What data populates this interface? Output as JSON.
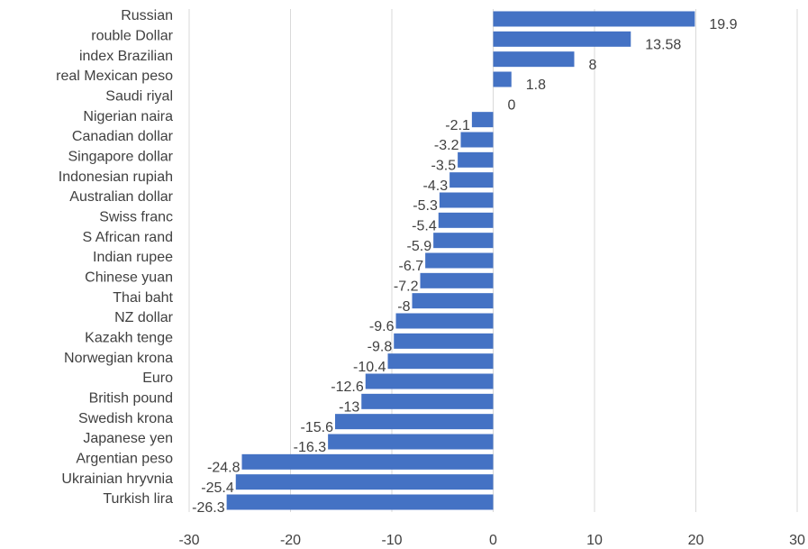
{
  "chart_data": {
    "type": "barh",
    "categories": [
      "Russian",
      "rouble Dollar",
      "index Brazilian",
      "real Mexican peso",
      "Saudi riyal",
      "Nigerian naira",
      "Canadian dollar",
      "Singapore dollar",
      "Indonesian rupiah",
      "Australian dollar",
      "Swiss franc",
      "S African rand",
      "Indian rupee",
      "Chinese yuan",
      "Thai baht",
      "NZ dollar",
      "Kazakh tenge",
      "Norwegian krona",
      "Euro",
      "British  pound",
      "Swedish krona",
      "Japanese yen",
      "Argentian peso",
      "Ukrainian hryvnia",
      "Turkish lira"
    ],
    "values": [
      19.9,
      13.58,
      8,
      1.8,
      0,
      -2.1,
      -3.2,
      -3.5,
      -4.3,
      -5.3,
      -5.4,
      -5.9,
      -6.7,
      -7.2,
      -8,
      -9.6,
      -9.8,
      -10.4,
      -12.6,
      -13,
      -15.6,
      -16.3,
      -24.8,
      -25.4,
      -26.3
    ],
    "color": "#4472c4",
    "xlim": [
      -30,
      30
    ],
    "xticks": [
      -30,
      -20,
      -10,
      0,
      10,
      20,
      30
    ],
    "grid": true
  }
}
